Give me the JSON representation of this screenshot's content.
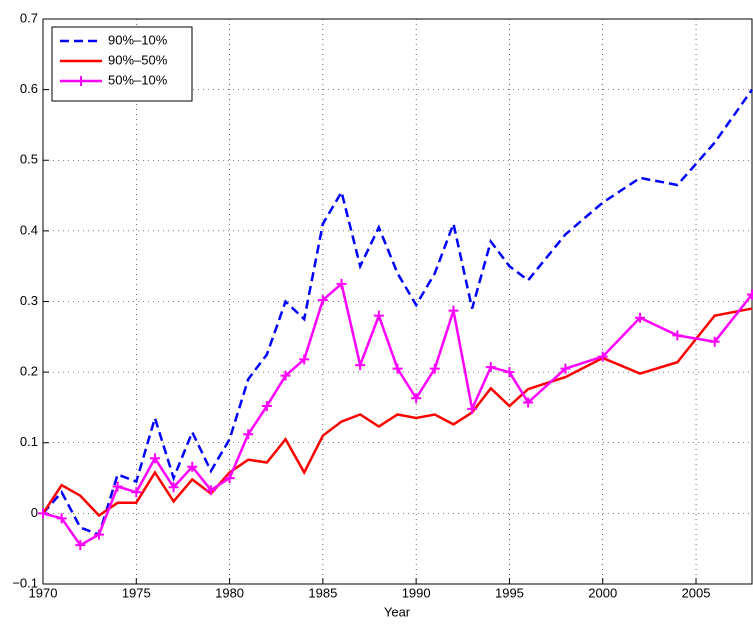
{
  "chart_data": {
    "type": "line",
    "xlabel": "Year",
    "x": [
      1970,
      1971,
      1972,
      1973,
      1974,
      1975,
      1976,
      1977,
      1978,
      1979,
      1980,
      1981,
      1982,
      1983,
      1984,
      1985,
      1986,
      1987,
      1988,
      1989,
      1990,
      1991,
      1992,
      1993,
      1994,
      1995,
      1996,
      1998,
      2000,
      2002,
      2004,
      2006,
      2008
    ],
    "series": [
      {
        "name": "90%–10%",
        "color": "#0000ff",
        "style": "dashed",
        "values": [
          0,
          0.03,
          -0.02,
          -0.03,
          0.055,
          0.045,
          0.135,
          0.05,
          0.115,
          0.06,
          0.105,
          0.19,
          0.225,
          0.3,
          0.275,
          0.41,
          0.455,
          0.35,
          0.405,
          0.34,
          0.295,
          0.34,
          0.41,
          0.29,
          0.385,
          0.35,
          0.33,
          0.395,
          0.44,
          0.475,
          0.465,
          0.525,
          0.6
        ]
      },
      {
        "name": "90%–50%",
        "color": "#ff0000",
        "style": "solid",
        "values": [
          0,
          0.04,
          0.025,
          -0.003,
          0.015,
          0.015,
          0.058,
          0.017,
          0.048,
          0.028,
          0.058,
          0.076,
          0.072,
          0.105,
          0.058,
          0.11,
          0.13,
          0.14,
          0.123,
          0.14,
          0.135,
          0.14,
          0.126,
          0.143,
          0.177,
          0.152,
          0.176,
          0.193,
          0.22,
          0.198,
          0.214,
          0.28,
          0.29
        ]
      },
      {
        "name": "50%–10%",
        "color": "#ff00ff",
        "style": "solid",
        "marker": "+",
        "values": [
          0,
          -0.007,
          -0.045,
          -0.03,
          0.038,
          0.03,
          0.078,
          0.037,
          0.066,
          0.033,
          0.05,
          0.112,
          0.152,
          0.195,
          0.218,
          0.302,
          0.325,
          0.21,
          0.28,
          0.205,
          0.163,
          0.205,
          0.287,
          0.148,
          0.207,
          0.2,
          0.157,
          0.205,
          0.222,
          0.277,
          0.252,
          0.243,
          0.31
        ]
      }
    ],
    "xlim": [
      1970,
      2008
    ],
    "xticks": [
      1970,
      1975,
      1980,
      1985,
      1990,
      1995,
      2000,
      2005
    ],
    "ylim": [
      -0.1,
      0.7
    ],
    "yticks": [
      {
        "value": -0.1,
        "label": "−0.1"
      },
      0,
      0.1,
      0.2,
      0.3,
      0.4,
      0.5,
      0.6,
      0.7
    ],
    "grid": true,
    "legend": "upper-left"
  }
}
